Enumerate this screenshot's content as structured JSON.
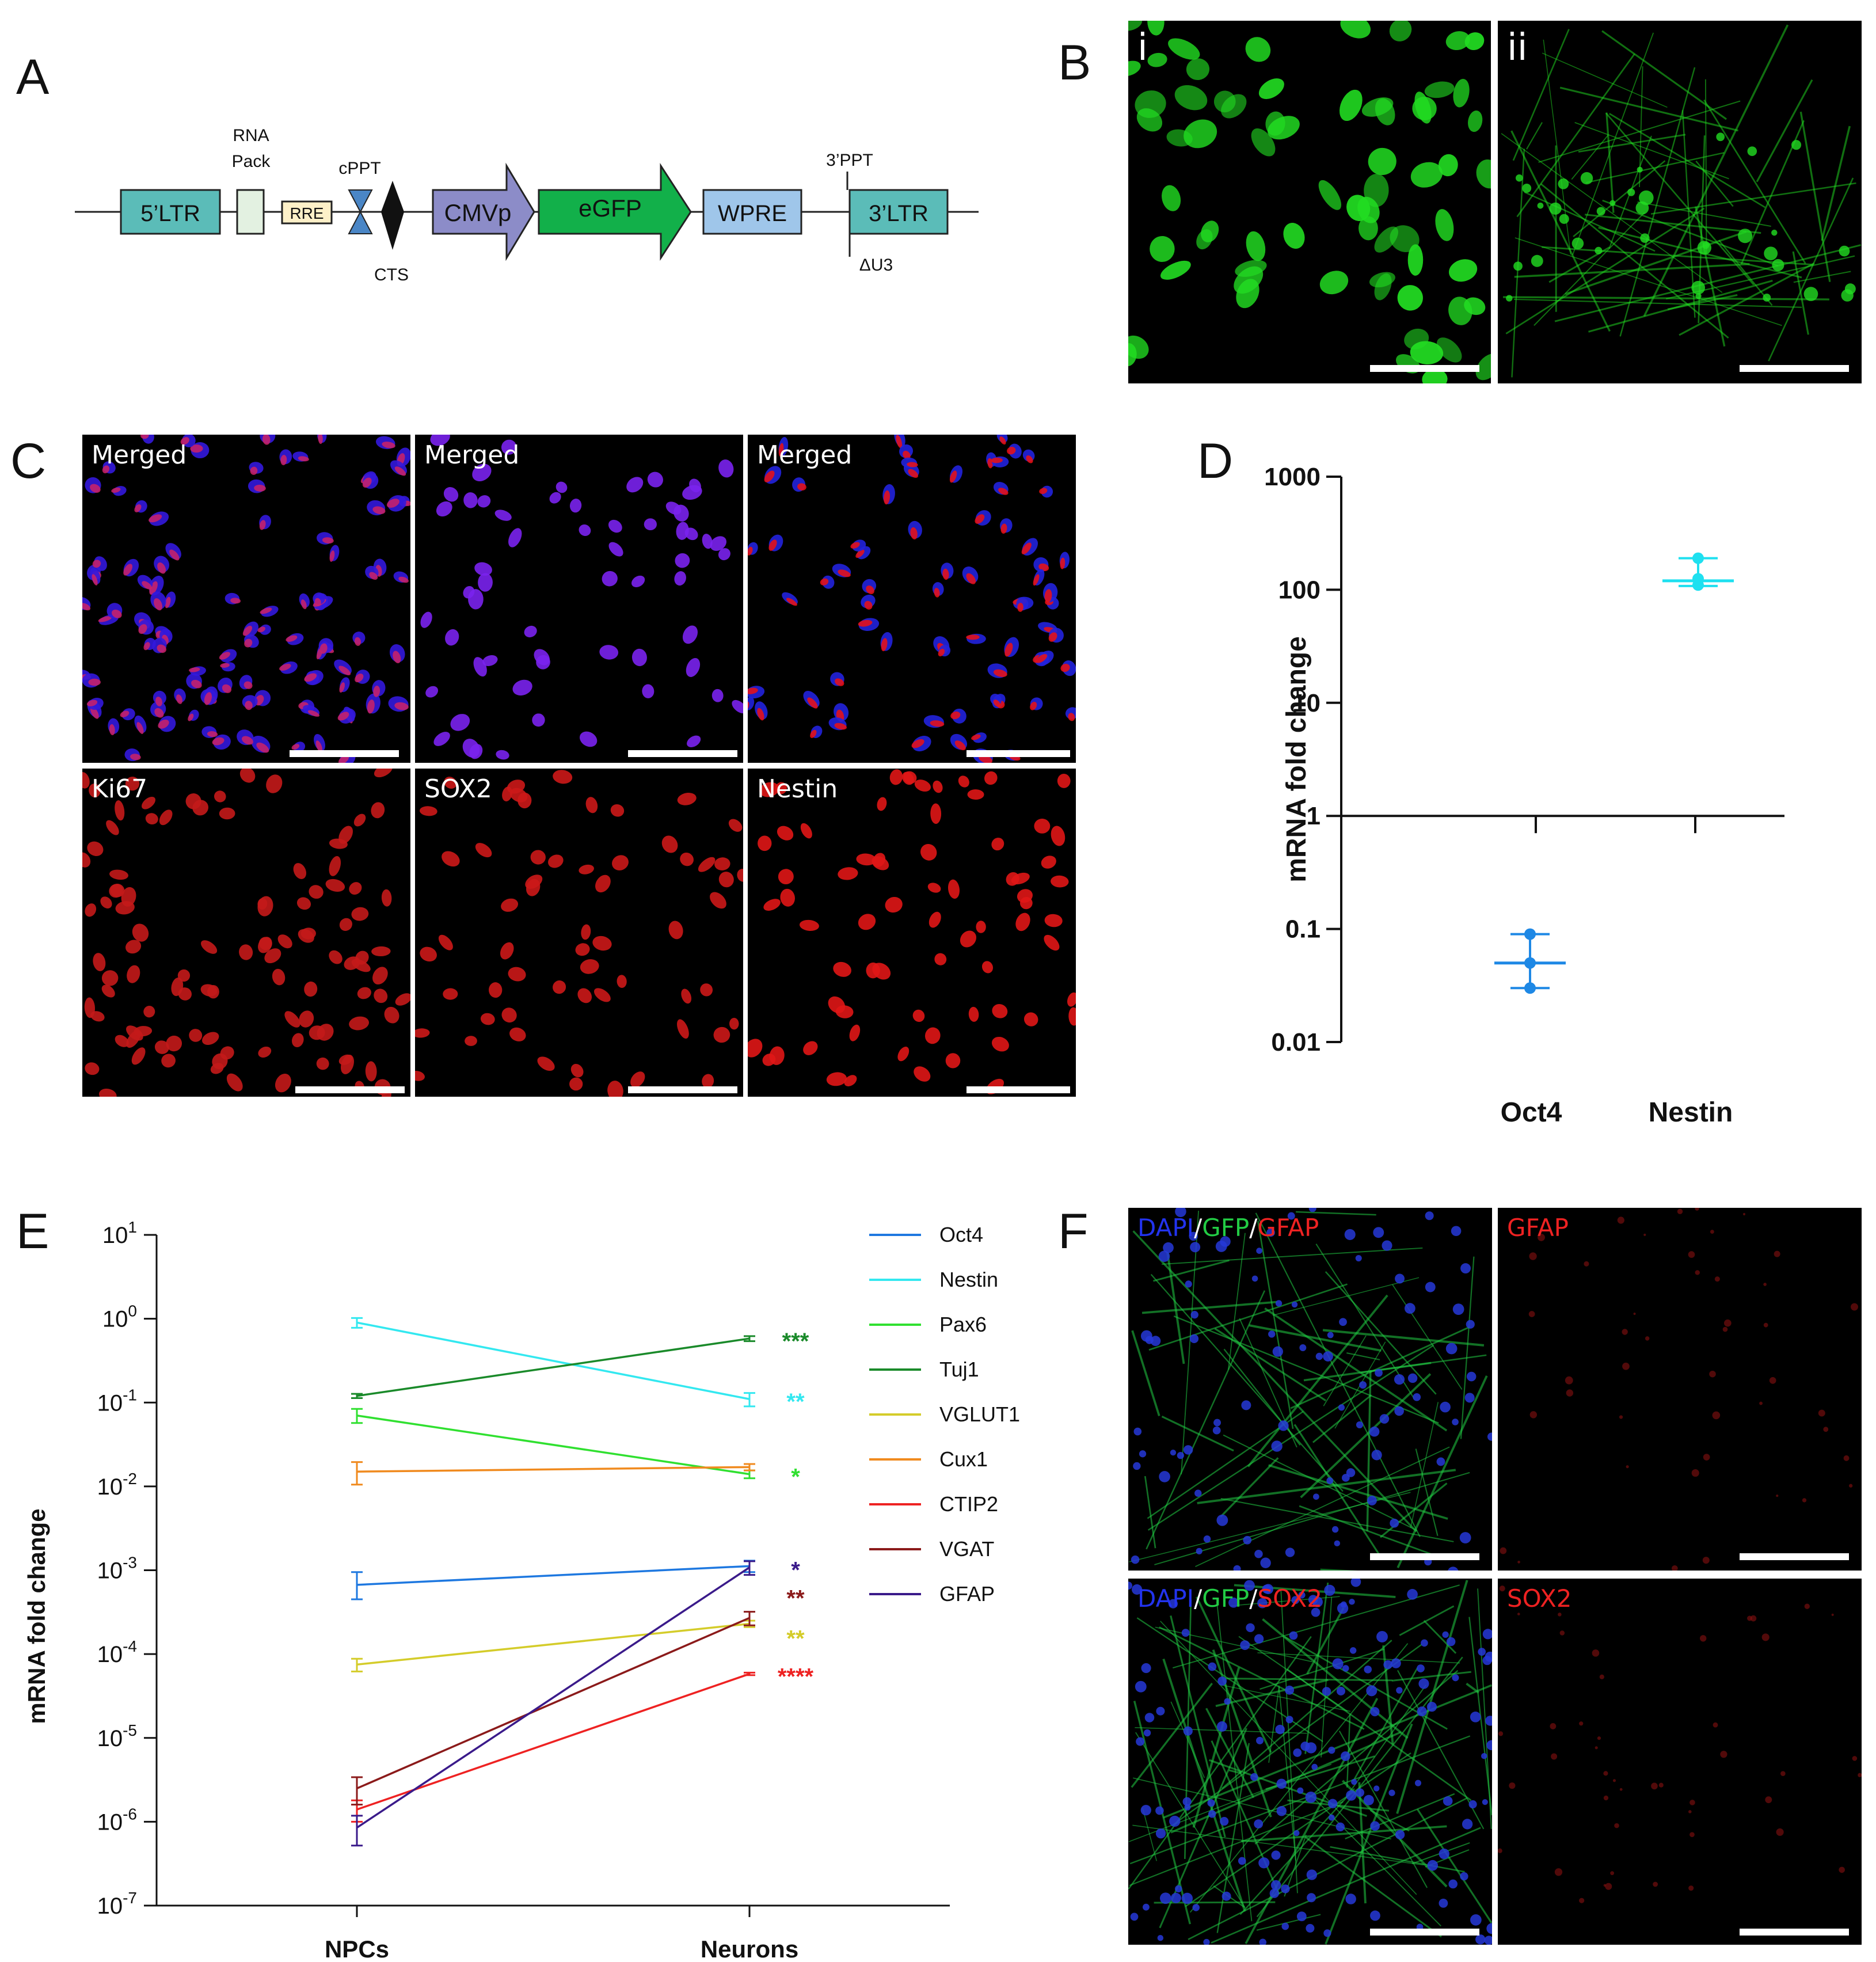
{
  "panels": {
    "A": "A",
    "B": "B",
    "C": "C",
    "D": "D",
    "E": "E",
    "F": "F"
  },
  "panel_a": {
    "labels": {
      "ltr5": "5’LTR",
      "rna_pack_line1": "RNA",
      "rna_pack_line2": "Pack",
      "rre": "RRE",
      "cppt": "cPPT",
      "cts": "CTS",
      "cmvp": "CMVp",
      "egfp": "eGFP",
      "wpre": "WPRE",
      "ppt3": "3’PPT",
      "ltr3": "3’LTR",
      "du3": "ΔU3"
    },
    "colors": {
      "ltr": "#5bbcb8",
      "rna_pack": "#e3f1e1",
      "rre": "#fdf0c8",
      "cppt": "#4a86c6",
      "cmvp": "#8c8cc8",
      "egfp": "#12b04a",
      "wpre": "#9fc6ea"
    }
  },
  "panel_b": {
    "sub_i": "i",
    "sub_ii": "ii",
    "color": "#22dd22"
  },
  "panel_c": {
    "top": [
      "Merged",
      "Merged",
      "Merged"
    ],
    "bottom": [
      "Ki67",
      "SOX2",
      "Nestin"
    ]
  },
  "panel_f": {
    "top_left": {
      "dapi": "DAPI",
      "sep1": "/",
      "gfp": "GFP",
      "sep2": "/",
      "marker": "GFAP"
    },
    "top_right": "GFAP",
    "bottom_left": {
      "dapi": "DAPI",
      "sep1": "/",
      "gfp": "GFP",
      "sep2": "/",
      "marker": "SOX2"
    },
    "bottom_right": "SOX2"
  },
  "chart_data": [
    {
      "panel": "D",
      "type": "scatter",
      "scale": "log",
      "ylabel": "mRNA fold change",
      "categories": [
        "Oct4",
        "Nestin"
      ],
      "ylim": [
        0.01,
        1000
      ],
      "yticks": [
        "1000",
        "100",
        "10",
        "1",
        "0.1",
        "0.01"
      ],
      "baseline": 1,
      "series": [
        {
          "category": "Oct4",
          "points": [
            0.09,
            0.05,
            0.03
          ],
          "mean": 0.05,
          "error": [
            0.03,
            0.09
          ],
          "color": "#1e88e5"
        },
        {
          "category": "Nestin",
          "points": [
            190,
            125,
            110
          ],
          "mean": 120,
          "error": [
            108,
            190
          ],
          "color": "#1ee0f0"
        }
      ]
    },
    {
      "panel": "E",
      "type": "line",
      "scale": "log",
      "ylabel": "mRNA fold change",
      "categories": [
        "NPCs",
        "Neurons"
      ],
      "ylim_exp": [
        -7,
        1
      ],
      "ytick_base": "10",
      "ytick_exps": [
        "1",
        "0",
        "-1",
        "-2",
        "-3",
        "-4",
        "-5",
        "-6",
        "-7"
      ],
      "series": [
        {
          "name": "Oct4",
          "color": "#1e78e0",
          "npc": 0.00067,
          "npc_err": [
            0.00045,
            0.00095
          ],
          "neu": 0.00112,
          "neu_err": [
            0.00095,
            0.0013
          ],
          "sig": ""
        },
        {
          "name": "Nestin",
          "color": "#33e8f0",
          "npc": 0.9,
          "npc_err": [
            0.78,
            1.02
          ],
          "neu": 0.11,
          "neu_err": [
            0.09,
            0.13
          ],
          "sig": "**"
        },
        {
          "name": "Pax6",
          "color": "#30e030",
          "npc": 0.07,
          "npc_err": [
            0.057,
            0.084
          ],
          "neu": 0.014,
          "neu_err": [
            0.0125,
            0.0155
          ],
          "sig": "*"
        },
        {
          "name": "Tuj1",
          "color": "#1a8a2a",
          "npc": 0.12,
          "npc_err": [
            0.113,
            0.127
          ],
          "neu": 0.58,
          "neu_err": [
            0.54,
            0.62
          ],
          "sig": "***"
        },
        {
          "name": "VGLUT1",
          "color": "#d4cc2a",
          "npc": 7.5e-05,
          "npc_err": [
            6.2e-05,
            8.8e-05
          ],
          "neu": 0.00023,
          "neu_err": [
            0.00021,
            0.00025
          ],
          "sig": "**"
        },
        {
          "name": "Cux1",
          "color": "#f08a1e",
          "npc": 0.015,
          "npc_err": [
            0.0105,
            0.0195
          ],
          "neu": 0.017,
          "neu_err": [
            0.0155,
            0.0185
          ],
          "sig": ""
        },
        {
          "name": "CTIP2",
          "color": "#ee2222",
          "npc": 1.4e-06,
          "npc_err": [
            1e-06,
            1.8e-06
          ],
          "neu": 5.8e-05,
          "neu_err": [
            5.6e-05,
            6e-05
          ],
          "sig": "****"
        },
        {
          "name": "VGAT",
          "color": "#8b1a1a",
          "npc": 2.5e-06,
          "npc_err": [
            1.6e-06,
            3.4e-06
          ],
          "neu": 0.00027,
          "neu_err": [
            0.00022,
            0.00032
          ],
          "sig": "**"
        },
        {
          "name": "GFAP",
          "color": "#3a1a8a",
          "npc": 8.5e-07,
          "npc_err": [
            5.2e-07,
            1.18e-06
          ],
          "neu": 0.00108,
          "neu_err": [
            0.00088,
            0.00128
          ],
          "sig": "*"
        }
      ],
      "oct4_sig": "*",
      "oct4_sig_color": "#4a2a8a"
    }
  ]
}
